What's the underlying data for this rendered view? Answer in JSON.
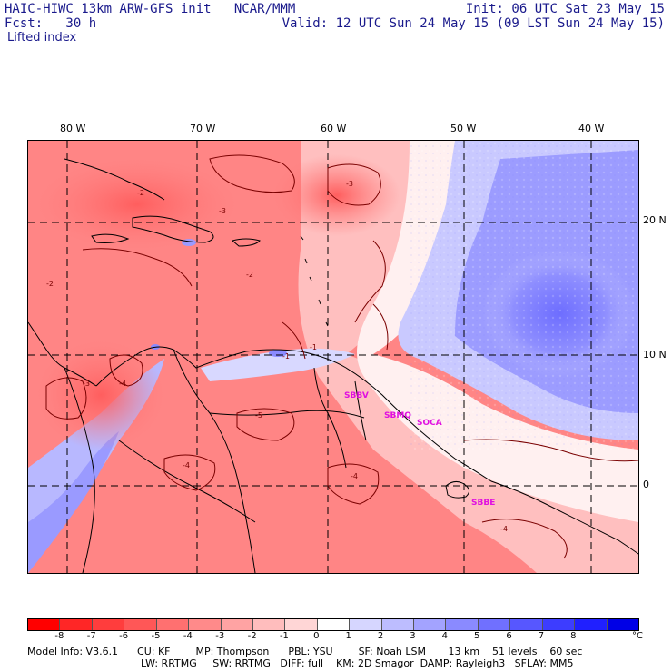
{
  "header": {
    "line1_left": "HAIC-HIWC 13km ARW-GFS init   NCAR/MMM",
    "line2_left": "Fcst:   30 h",
    "line1_right": "Init: 06 UTC Sat 23 May 15",
    "line2_right": "Valid: 12 UTC Sun 24 May 15 (09 LST Sun 24 May 15)",
    "field_name": "Lifted index"
  },
  "map": {
    "lon_labels": [
      "80 W",
      "70 W",
      "60 W",
      "50 W",
      "40 W"
    ],
    "lat_labels": [
      "20 N",
      "10 N",
      "0"
    ],
    "sites": [
      "SBBV",
      "SBMQ",
      "SOCA",
      "SBBE"
    ],
    "contour_labels": [
      "-2",
      "-2",
      "-2",
      "-1",
      "-1",
      "-3",
      "-3",
      "-3",
      "-4",
      "-5",
      "-4",
      "-4",
      "-4"
    ]
  },
  "colorbar": {
    "labels": [
      "-8",
      "-7",
      "-6",
      "-5",
      "-4",
      "-3",
      "-2",
      "-1",
      "0",
      "1",
      "2",
      "3",
      "4",
      "5",
      "6",
      "7",
      "8"
    ],
    "unit": "°C",
    "colors": [
      "#ff0000",
      "#ff2626",
      "#ff3d3d",
      "#ff5757",
      "#ff7070",
      "#ff8a8a",
      "#ffa3a3",
      "#ffbdbd",
      "#ffd6d6",
      "#ffffff",
      "#d6d6ff",
      "#bdbdff",
      "#a3a3ff",
      "#8a8aff",
      "#7070ff",
      "#5757ff",
      "#3d3dff",
      "#2020ff",
      "#0000e6"
    ]
  },
  "footer": {
    "line1": "Model Info: V3.6.1      CU: KF        MP: Thompson      PBL: YSU        SF: Noah LSM       13 km    51 levels    60 sec",
    "line2": "LW: RRTMG     SW: RRTMG   DIFF: full    KM: 2D Smagor  DAMP: Rayleigh3   SFLAY: MM5"
  }
}
